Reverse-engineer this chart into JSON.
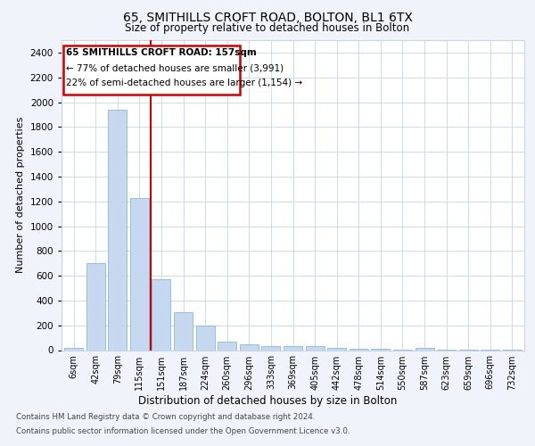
{
  "title1": "65, SMITHILLS CROFT ROAD, BOLTON, BL1 6TX",
  "title2": "Size of property relative to detached houses in Bolton",
  "xlabel": "Distribution of detached houses by size in Bolton",
  "ylabel": "Number of detached properties",
  "categories": [
    "6sqm",
    "42sqm",
    "79sqm",
    "115sqm",
    "151sqm",
    "187sqm",
    "224sqm",
    "260sqm",
    "296sqm",
    "333sqm",
    "369sqm",
    "405sqm",
    "442sqm",
    "478sqm",
    "514sqm",
    "550sqm",
    "587sqm",
    "623sqm",
    "659sqm",
    "696sqm",
    "732sqm"
  ],
  "values": [
    15,
    705,
    1940,
    1225,
    575,
    305,
    200,
    70,
    45,
    35,
    30,
    30,
    20,
    10,
    10,
    5,
    20,
    3,
    3,
    3,
    3
  ],
  "bar_color": "#c5d8ef",
  "bar_edgecolor": "#7bafd4",
  "marker_line_color": "#cc0000",
  "annotation_box_color": "#cc0000",
  "annotation_text_line1": "65 SMITHILLS CROFT ROAD: 157sqm",
  "annotation_text_line2": "← 77% of detached houses are smaller (3,991)",
  "annotation_text_line3": "22% of semi-detached houses are larger (1,154) →",
  "ylim": [
    0,
    2500
  ],
  "yticks": [
    0,
    200,
    400,
    600,
    800,
    1000,
    1200,
    1400,
    1600,
    1800,
    2000,
    2200,
    2400
  ],
  "footer1": "Contains HM Land Registry data © Crown copyright and database right 2024.",
  "footer2": "Contains public sector information licensed under the Open Government Licence v3.0.",
  "bg_color": "#f0f4fa",
  "plot_bg_color": "#ffffff",
  "grid_color": "#c8d4e4"
}
